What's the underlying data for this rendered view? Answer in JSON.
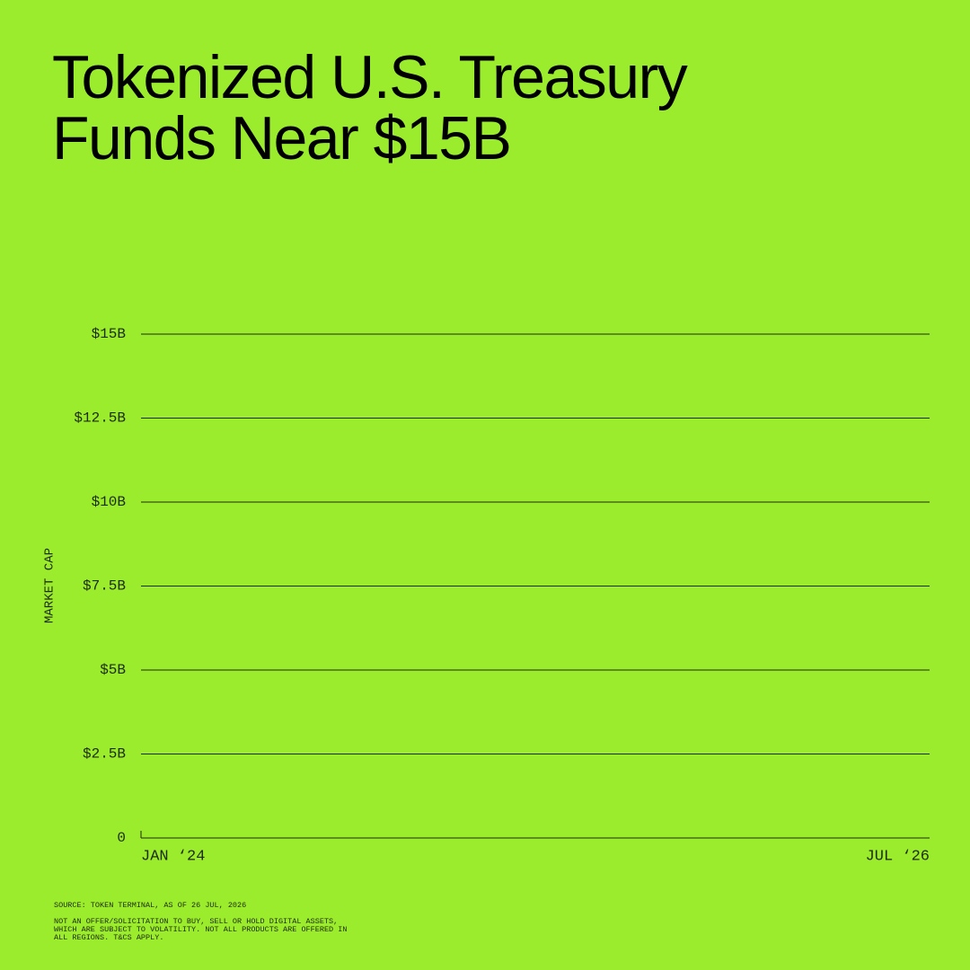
{
  "chart_data": {
    "type": "line",
    "title": "Tokenized U.S. Treasury Funds Near $15B",
    "y_label": "MARKET CAP",
    "ylim": [
      0,
      15
    ],
    "yticks": [
      0,
      {
        "value": 2.5,
        "label": "$2.5B"
      },
      {
        "value": 5,
        "label": "$5B"
      },
      {
        "value": 7.5,
        "label": "$7.5B"
      },
      {
        "value": 10,
        "label": "$10B"
      },
      {
        "value": 12.5,
        "label": "$12.5B"
      },
      {
        "value": 15,
        "label": "$15B"
      }
    ],
    "xlim": [
      "2024-01",
      "2026-07"
    ],
    "xticks": [
      {
        "value": "2024-01",
        "label": "JAN ‘24"
      },
      {
        "value": "2026-07",
        "label": "JUL ‘26"
      }
    ],
    "grid": true,
    "color": "#1d2b10",
    "background": "#9bec2c",
    "source": "SOURCE: TOKEN TERMINAL, AS OF 26 JUL, 2026",
    "disclaimer": "NOT AN OFFER/SOLICITATION TO BUY, SELL OR HOLD DIGITAL ASSETS, WHICH ARE SUBJECT TO VOLATILITY. NOT ALL PRODUCTS ARE OFFERED IN ALL REGIONS. T&CS APPLY."
  }
}
